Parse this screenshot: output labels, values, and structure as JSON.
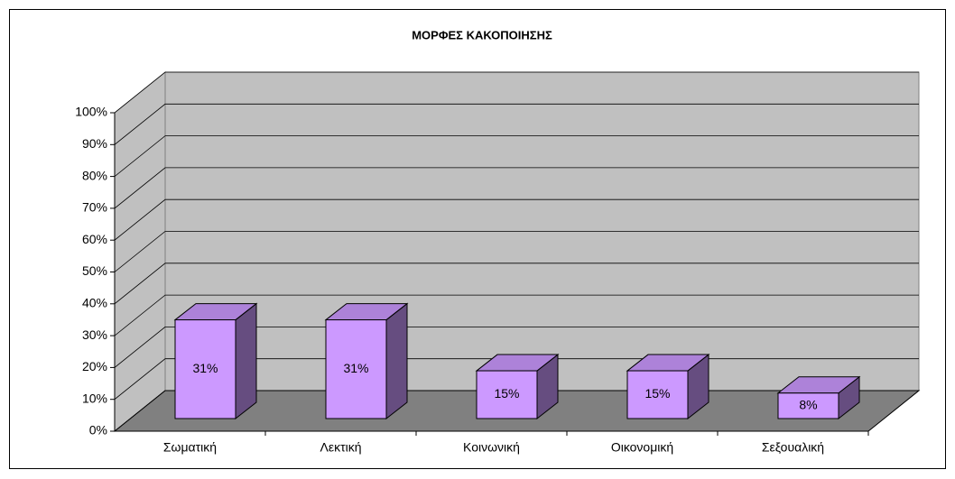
{
  "chart_data": {
    "type": "bar3d",
    "title": "ΜΟΡΦΕΣ  ΚΑΚΟΠΟΙΗΣΗΣ",
    "categories": [
      "Σωματική",
      "Λεκτική",
      "Κοινωνική",
      "Οικονομική",
      "Σεξουαλική"
    ],
    "values": [
      31,
      31,
      15,
      15,
      8
    ],
    "value_labels": [
      "31%",
      "31%",
      "15%",
      "15%",
      "8%"
    ],
    "color": "#cc99ff",
    "ylim": [
      0,
      100
    ],
    "yticks": [
      {
        "value": 0,
        "label": "0%"
      },
      {
        "value": 10,
        "label": "10%"
      },
      {
        "value": 20,
        "label": "20%"
      },
      {
        "value": 30,
        "label": "30%"
      },
      {
        "value": 40,
        "label": "40%"
      },
      {
        "value": 50,
        "label": "50%"
      },
      {
        "value": 60,
        "label": "60%"
      },
      {
        "value": 70,
        "label": "70%"
      },
      {
        "value": 80,
        "label": "80%"
      },
      {
        "value": 90,
        "label": "90%"
      },
      {
        "value": 100,
        "label": "100%"
      }
    ],
    "grid": true
  }
}
